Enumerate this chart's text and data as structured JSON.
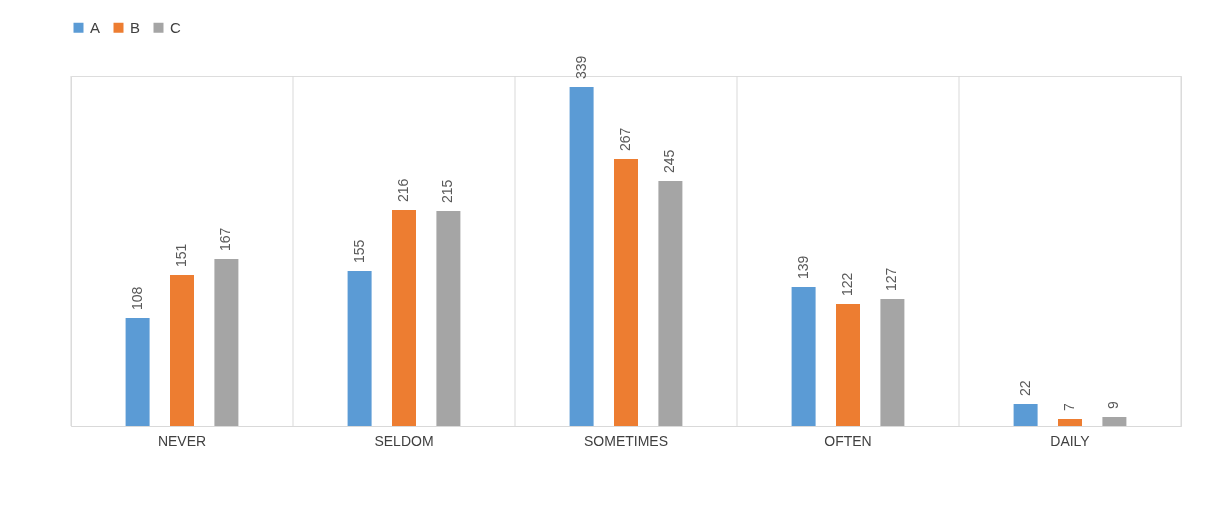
{
  "chart_data": {
    "type": "bar",
    "categories": [
      "NEVER",
      "SELDOM",
      "SOMETIMES",
      "OFTEN",
      "DAILY"
    ],
    "series": [
      {
        "name": "A",
        "color": "#5b9bd5",
        "values": [
          108,
          155,
          339,
          139,
          22
        ]
      },
      {
        "name": "B",
        "color": "#ed7d31",
        "values": [
          151,
          216,
          267,
          122,
          7
        ]
      },
      {
        "name": "C",
        "color": "#a5a5a5",
        "values": [
          167,
          215,
          245,
          127,
          9
        ]
      }
    ],
    "data_labels": true,
    "grid": "x",
    "legend": "top"
  }
}
